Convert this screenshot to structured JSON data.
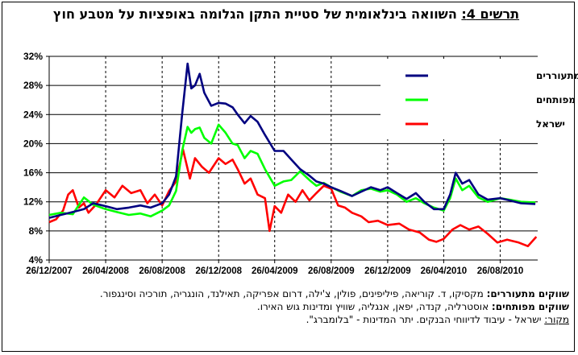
{
  "title": {
    "label": "תרשים 4:",
    "text": "השוואה בינלאומית של סטיית התקן הגלומה באופציות על מטבע חוץ"
  },
  "notes": {
    "emerging_label": "שווקים מתעוררים:",
    "emerging_text": "מקסיקו, ד. קוריאה, פיליפינים, פולין, צ'ילה, דרום אפריקה, תאילנד, הונגריה, תורכיה וסינגפור.",
    "developed_label": "שווקים מפותחים:",
    "developed_text": "אוסטרליה, קנדה, יפאן, אנגליה, שוויץ ומדינות גוש האירו.",
    "source_label": "מקור:",
    "source_text": "ישראל - עיבוד לדיווחי הבנקים. יתר המדינות - \"בלומברג\"."
  },
  "chart_data": {
    "type": "line",
    "y_axis": {
      "min": 4,
      "max": 32,
      "ticks": [
        4,
        8,
        12,
        16,
        20,
        24,
        28,
        32
      ],
      "format": "percent"
    },
    "x_axis": {
      "min": "2007-12-26",
      "max": "2010-11-15",
      "tick_labels": [
        "26/12/2007",
        "26/04/2008",
        "26/08/2008",
        "26/12/2008",
        "26/04/2009",
        "26/08/2009",
        "26/12/2009",
        "26/04/2010",
        "26/08/2010"
      ],
      "tick_dates": [
        "2007-12-26",
        "2008-04-26",
        "2008-08-26",
        "2008-12-26",
        "2009-04-26",
        "2009-08-26",
        "2009-12-26",
        "2010-04-26",
        "2010-08-26"
      ]
    },
    "grid": {
      "horizontal": "solid",
      "vertical": "dashed"
    },
    "legend_position": "top-right",
    "series": [
      {
        "name": "ממוצע שווקים מתעוררים",
        "color": "#000080",
        "points": [
          [
            "2007-12-26",
            9.8
          ],
          [
            "2008-01-20",
            10.2
          ],
          [
            "2008-02-15",
            10.6
          ],
          [
            "2008-03-10",
            11.0
          ],
          [
            "2008-03-30",
            11.8
          ],
          [
            "2008-04-26",
            11.4
          ],
          [
            "2008-05-20",
            11.0
          ],
          [
            "2008-06-15",
            11.2
          ],
          [
            "2008-07-10",
            11.5
          ],
          [
            "2008-08-01",
            11.2
          ],
          [
            "2008-08-26",
            11.8
          ],
          [
            "2008-09-10",
            13.0
          ],
          [
            "2008-09-25",
            15.5
          ],
          [
            "2008-10-08",
            24.0
          ],
          [
            "2008-10-20",
            31.0
          ],
          [
            "2008-10-28",
            27.6
          ],
          [
            "2008-11-05",
            28.0
          ],
          [
            "2008-11-15",
            29.6
          ],
          [
            "2008-11-25",
            27.0
          ],
          [
            "2008-12-10",
            25.2
          ],
          [
            "2008-12-26",
            25.6
          ],
          [
            "2009-01-10",
            25.5
          ],
          [
            "2009-01-25",
            25.0
          ],
          [
            "2009-02-05",
            24.0
          ],
          [
            "2009-02-20",
            22.8
          ],
          [
            "2009-03-05",
            23.8
          ],
          [
            "2009-03-20",
            23.0
          ],
          [
            "2009-04-05",
            21.2
          ],
          [
            "2009-04-26",
            19.0
          ],
          [
            "2009-05-15",
            19.0
          ],
          [
            "2009-06-01",
            17.8
          ],
          [
            "2009-06-20",
            16.5
          ],
          [
            "2009-07-10",
            15.6
          ],
          [
            "2009-07-25",
            14.8
          ],
          [
            "2009-08-10",
            14.5
          ],
          [
            "2009-08-26",
            14.0
          ],
          [
            "2009-09-15",
            13.5
          ],
          [
            "2009-10-10",
            12.8
          ],
          [
            "2009-10-30",
            13.4
          ],
          [
            "2009-11-20",
            14.0
          ],
          [
            "2009-12-10",
            13.6
          ],
          [
            "2009-12-26",
            14.0
          ],
          [
            "2010-01-15",
            13.2
          ],
          [
            "2010-02-05",
            12.4
          ],
          [
            "2010-02-25",
            13.2
          ],
          [
            "2010-03-15",
            12.0
          ],
          [
            "2010-04-05",
            11.0
          ],
          [
            "2010-04-26",
            11.0
          ],
          [
            "2010-05-10",
            13.0
          ],
          [
            "2010-05-22",
            16.0
          ],
          [
            "2010-06-05",
            14.5
          ],
          [
            "2010-06-20",
            15.0
          ],
          [
            "2010-07-10",
            13.0
          ],
          [
            "2010-07-30",
            12.3
          ],
          [
            "2010-08-26",
            12.5
          ],
          [
            "2010-09-15",
            12.2
          ],
          [
            "2010-10-10",
            11.8
          ],
          [
            "2010-11-10",
            11.7
          ]
        ]
      },
      {
        "name": "ממוצע שווקים מפותחים",
        "color": "#00ff00",
        "points": [
          [
            "2007-12-26",
            10.2
          ],
          [
            "2008-01-20",
            10.5
          ],
          [
            "2008-02-15",
            10.3
          ],
          [
            "2008-03-10",
            12.6
          ],
          [
            "2008-03-30",
            11.6
          ],
          [
            "2008-04-26",
            11.0
          ],
          [
            "2008-05-20",
            10.6
          ],
          [
            "2008-06-15",
            10.2
          ],
          [
            "2008-07-10",
            10.4
          ],
          [
            "2008-08-01",
            10.0
          ],
          [
            "2008-08-26",
            10.8
          ],
          [
            "2008-09-10",
            11.5
          ],
          [
            "2008-09-25",
            13.5
          ],
          [
            "2008-10-08",
            19.0
          ],
          [
            "2008-10-20",
            22.3
          ],
          [
            "2008-10-28",
            21.5
          ],
          [
            "2008-11-05",
            22.0
          ],
          [
            "2008-11-15",
            22.2
          ],
          [
            "2008-11-25",
            20.8
          ],
          [
            "2008-12-10",
            20.0
          ],
          [
            "2008-12-26",
            22.6
          ],
          [
            "2009-01-10",
            21.5
          ],
          [
            "2009-01-25",
            20.0
          ],
          [
            "2009-02-05",
            19.8
          ],
          [
            "2009-02-20",
            18.0
          ],
          [
            "2009-03-05",
            19.0
          ],
          [
            "2009-03-20",
            18.6
          ],
          [
            "2009-04-05",
            16.5
          ],
          [
            "2009-04-26",
            14.2
          ],
          [
            "2009-05-15",
            14.8
          ],
          [
            "2009-06-01",
            15.0
          ],
          [
            "2009-06-20",
            16.2
          ],
          [
            "2009-07-10",
            15.0
          ],
          [
            "2009-07-25",
            14.2
          ],
          [
            "2009-08-10",
            14.6
          ],
          [
            "2009-08-26",
            14.0
          ],
          [
            "2009-09-15",
            13.4
          ],
          [
            "2009-10-10",
            12.8
          ],
          [
            "2009-10-30",
            13.6
          ],
          [
            "2009-11-20",
            13.8
          ],
          [
            "2009-12-10",
            13.4
          ],
          [
            "2009-12-26",
            13.6
          ],
          [
            "2010-01-15",
            13.0
          ],
          [
            "2010-02-05",
            12.0
          ],
          [
            "2010-02-25",
            12.5
          ],
          [
            "2010-03-15",
            11.8
          ],
          [
            "2010-04-05",
            11.2
          ],
          [
            "2010-04-26",
            10.8
          ],
          [
            "2010-05-10",
            12.5
          ],
          [
            "2010-05-22",
            15.2
          ],
          [
            "2010-06-05",
            13.6
          ],
          [
            "2010-06-20",
            14.2
          ],
          [
            "2010-07-10",
            12.6
          ],
          [
            "2010-07-30",
            12.0
          ],
          [
            "2010-08-26",
            12.5
          ],
          [
            "2010-09-15",
            12.3
          ],
          [
            "2010-10-10",
            12.0
          ],
          [
            "2010-11-10",
            11.9
          ]
        ]
      },
      {
        "name": "ישראל",
        "color": "#ff0000",
        "points": [
          [
            "2007-12-26",
            9.2
          ],
          [
            "2008-01-10",
            9.6
          ],
          [
            "2008-01-25",
            10.8
          ],
          [
            "2008-02-05",
            13.0
          ],
          [
            "2008-02-15",
            13.6
          ],
          [
            "2008-02-28",
            11.2
          ],
          [
            "2008-03-10",
            11.8
          ],
          [
            "2008-03-20",
            10.5
          ],
          [
            "2008-04-05",
            11.6
          ],
          [
            "2008-04-26",
            13.6
          ],
          [
            "2008-05-15",
            12.6
          ],
          [
            "2008-06-01",
            14.2
          ],
          [
            "2008-06-20",
            13.2
          ],
          [
            "2008-07-10",
            13.6
          ],
          [
            "2008-07-25",
            11.8
          ],
          [
            "2008-08-10",
            13.0
          ],
          [
            "2008-08-26",
            11.5
          ],
          [
            "2008-09-10",
            13.5
          ],
          [
            "2008-09-25",
            14.8
          ],
          [
            "2008-10-10",
            19.2
          ],
          [
            "2008-10-25",
            15.2
          ],
          [
            "2008-11-05",
            18.0
          ],
          [
            "2008-11-20",
            16.8
          ],
          [
            "2008-12-05",
            16.0
          ],
          [
            "2008-12-26",
            18.0
          ],
          [
            "2009-01-10",
            17.2
          ],
          [
            "2009-01-25",
            17.8
          ],
          [
            "2009-02-05",
            16.5
          ],
          [
            "2009-02-20",
            14.5
          ],
          [
            "2009-03-05",
            15.2
          ],
          [
            "2009-03-20",
            13.0
          ],
          [
            "2009-04-05",
            12.5
          ],
          [
            "2009-04-15",
            8.0
          ],
          [
            "2009-04-26",
            11.4
          ],
          [
            "2009-05-10",
            10.5
          ],
          [
            "2009-05-25",
            13.0
          ],
          [
            "2009-06-10",
            12.0
          ],
          [
            "2009-06-25",
            13.6
          ],
          [
            "2009-07-10",
            12.2
          ],
          [
            "2009-07-25",
            13.2
          ],
          [
            "2009-08-10",
            14.2
          ],
          [
            "2009-08-26",
            13.8
          ],
          [
            "2009-09-10",
            11.5
          ],
          [
            "2009-09-25",
            11.2
          ],
          [
            "2009-10-10",
            10.5
          ],
          [
            "2009-10-30",
            10.0
          ],
          [
            "2009-11-15",
            9.2
          ],
          [
            "2009-12-05",
            9.4
          ],
          [
            "2009-12-26",
            8.8
          ],
          [
            "2010-01-20",
            9.0
          ],
          [
            "2010-02-10",
            8.2
          ],
          [
            "2010-03-05",
            7.8
          ],
          [
            "2010-03-25",
            6.8
          ],
          [
            "2010-04-10",
            6.5
          ],
          [
            "2010-04-26",
            6.9
          ],
          [
            "2010-05-15",
            8.2
          ],
          [
            "2010-06-01",
            8.8
          ],
          [
            "2010-06-20",
            8.2
          ],
          [
            "2010-07-10",
            8.6
          ],
          [
            "2010-07-30",
            7.6
          ],
          [
            "2010-08-20",
            6.4
          ],
          [
            "2010-09-10",
            6.8
          ],
          [
            "2010-10-05",
            6.4
          ],
          [
            "2010-10-25",
            5.9
          ],
          [
            "2010-11-12",
            7.2
          ]
        ]
      }
    ]
  }
}
